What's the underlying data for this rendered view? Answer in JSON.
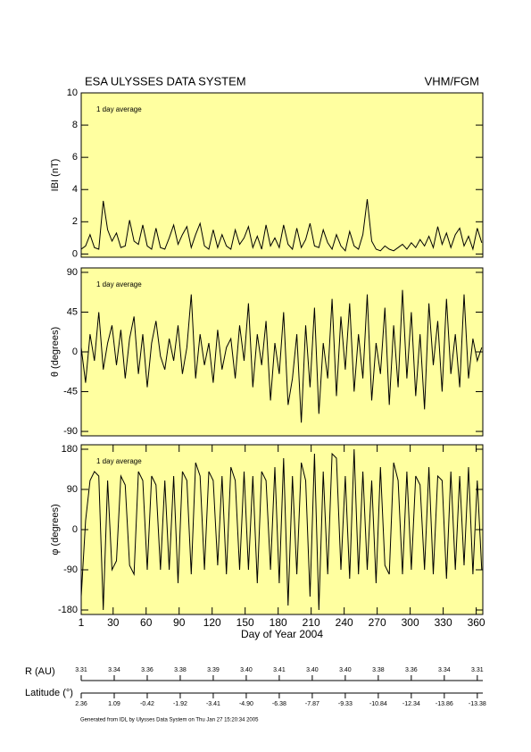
{
  "header": {
    "title": "ESA ULYSSES DATA SYSTEM",
    "instrument": "VHM/FGM"
  },
  "chart_data": [
    {
      "type": "line",
      "annotation": "1 day average",
      "ylabel": "IBI (nT)",
      "color": "#000000",
      "x": [
        1,
        5,
        9,
        13,
        17,
        21,
        25,
        29,
        33,
        37,
        41,
        45,
        49,
        53,
        57,
        61,
        65,
        69,
        73,
        77,
        81,
        85,
        89,
        93,
        97,
        101,
        105,
        109,
        113,
        117,
        121,
        125,
        129,
        133,
        137,
        141,
        145,
        149,
        153,
        157,
        161,
        165,
        169,
        173,
        177,
        181,
        185,
        189,
        193,
        197,
        201,
        205,
        209,
        213,
        217,
        221,
        225,
        229,
        233,
        237,
        241,
        245,
        249,
        253,
        257,
        261,
        265,
        269,
        273,
        277,
        281,
        285,
        289,
        293,
        297,
        301,
        305,
        309,
        313,
        317,
        321,
        325,
        329,
        333,
        337,
        341,
        345,
        349,
        353,
        357,
        361,
        365
      ],
      "values": [
        0.3,
        0.5,
        1.2,
        0.4,
        0.3,
        3.3,
        1.5,
        0.8,
        1.3,
        0.4,
        0.5,
        2.1,
        0.8,
        0.6,
        1.8,
        0.5,
        0.3,
        1.6,
        0.4,
        0.3,
        1.0,
        1.8,
        0.6,
        1.2,
        1.7,
        0.4,
        1.2,
        1.9,
        0.5,
        0.3,
        1.5,
        0.4,
        1.2,
        0.5,
        0.3,
        1.5,
        0.6,
        1.0,
        1.7,
        0.4,
        1.1,
        0.3,
        1.8,
        0.5,
        1.0,
        0.4,
        1.8,
        0.6,
        0.3,
        1.6,
        0.4,
        0.9,
        1.9,
        0.5,
        0.4,
        1.5,
        0.7,
        0.3,
        1.2,
        0.5,
        0.2,
        1.4,
        0.5,
        0.3,
        1.2,
        3.4,
        0.8,
        0.3,
        0.2,
        0.5,
        0.3,
        0.2,
        0.4,
        0.6,
        0.3,
        0.7,
        0.4,
        0.9,
        0.5,
        1.1,
        0.4,
        1.7,
        0.6,
        1.3,
        0.4,
        1.2,
        1.6,
        0.5,
        1.1,
        0.3,
        1.6,
        0.7
      ],
      "xlim": [
        1,
        366
      ],
      "ylim": [
        -0.2,
        10
      ],
      "yticks": [
        0,
        2,
        4,
        6,
        8,
        10
      ]
    },
    {
      "type": "line",
      "annotation": "1 day average",
      "ylabel": "θ (degrees)",
      "color": "#000000",
      "x": [
        1,
        5,
        9,
        13,
        17,
        21,
        25,
        29,
        33,
        37,
        41,
        45,
        49,
        53,
        57,
        61,
        65,
        69,
        73,
        77,
        81,
        85,
        89,
        93,
        97,
        101,
        105,
        109,
        113,
        117,
        121,
        125,
        129,
        133,
        137,
        141,
        145,
        149,
        153,
        157,
        161,
        165,
        169,
        173,
        177,
        181,
        185,
        189,
        193,
        197,
        201,
        205,
        209,
        213,
        217,
        221,
        225,
        229,
        233,
        237,
        241,
        245,
        249,
        253,
        257,
        261,
        265,
        269,
        273,
        277,
        281,
        285,
        289,
        293,
        297,
        301,
        305,
        309,
        313,
        317,
        321,
        325,
        329,
        333,
        337,
        341,
        345,
        349,
        353,
        357,
        361,
        365
      ],
      "values": [
        5,
        -35,
        20,
        -10,
        45,
        -20,
        10,
        30,
        -15,
        25,
        -30,
        15,
        40,
        -25,
        20,
        -40,
        10,
        35,
        -5,
        -20,
        15,
        -10,
        30,
        -25,
        5,
        65,
        -30,
        20,
        -15,
        10,
        -35,
        25,
        -20,
        5,
        15,
        -30,
        30,
        -10,
        55,
        -40,
        20,
        -15,
        35,
        -55,
        10,
        -25,
        45,
        -60,
        -30,
        20,
        -80,
        30,
        -40,
        50,
        -70,
        10,
        -30,
        60,
        -50,
        40,
        -20,
        55,
        -45,
        20,
        -30,
        65,
        -55,
        10,
        -25,
        50,
        -60,
        30,
        -40,
        70,
        -30,
        45,
        -50,
        20,
        -65,
        55,
        -15,
        35,
        -45,
        60,
        -25,
        20,
        -40,
        65,
        -30,
        15,
        -10,
        5
      ],
      "xlim": [
        1,
        366
      ],
      "ylim": [
        -95,
        95
      ],
      "yticks": [
        -90,
        -45,
        0,
        45,
        90
      ]
    },
    {
      "type": "line",
      "annotation": "1 day average",
      "ylabel": "φ (degrees)",
      "color": "#000000",
      "xlabel": "Day of Year 2004",
      "x": [
        1,
        5,
        9,
        13,
        17,
        21,
        25,
        29,
        33,
        37,
        41,
        45,
        49,
        53,
        57,
        61,
        65,
        69,
        73,
        77,
        81,
        85,
        89,
        93,
        97,
        101,
        105,
        109,
        113,
        117,
        121,
        125,
        129,
        133,
        137,
        141,
        145,
        149,
        153,
        157,
        161,
        165,
        169,
        173,
        177,
        181,
        185,
        189,
        193,
        197,
        201,
        205,
        209,
        213,
        217,
        221,
        225,
        229,
        233,
        237,
        241,
        245,
        249,
        253,
        257,
        261,
        265,
        269,
        273,
        277,
        281,
        285,
        289,
        293,
        297,
        301,
        305,
        309,
        313,
        317,
        321,
        325,
        329,
        333,
        337,
        341,
        345,
        349,
        353,
        357,
        361,
        365
      ],
      "values": [
        -150,
        20,
        110,
        130,
        120,
        -180,
        110,
        -90,
        -70,
        120,
        100,
        -80,
        -100,
        130,
        110,
        -90,
        120,
        100,
        -90,
        110,
        -90,
        120,
        -120,
        130,
        110,
        -100,
        150,
        120,
        -90,
        130,
        110,
        -80,
        120,
        -100,
        140,
        110,
        -90,
        130,
        -90,
        120,
        -120,
        130,
        110,
        -90,
        140,
        -120,
        160,
        -170,
        120,
        -100,
        150,
        110,
        -150,
        170,
        -180,
        130,
        -100,
        170,
        160,
        -90,
        120,
        -110,
        180,
        -100,
        130,
        -90,
        110,
        -120,
        140,
        -80,
        -100,
        150,
        110,
        -100,
        130,
        -90,
        120,
        100,
        -90,
        140,
        -100,
        120,
        110,
        -110,
        130,
        -90,
        120,
        -80,
        140,
        -100,
        110,
        -90
      ],
      "xlim": [
        1,
        366
      ],
      "ylim": [
        -190,
        190
      ],
      "yticks": [
        -180,
        -90,
        0,
        90,
        180
      ],
      "xticks": [
        1,
        30,
        60,
        90,
        120,
        150,
        180,
        210,
        240,
        270,
        300,
        330,
        360
      ]
    }
  ],
  "orbit": {
    "days": [
      1,
      31,
      61,
      91,
      121,
      151,
      181,
      211,
      241,
      271,
      301,
      331,
      361
    ],
    "r_label": "R (AU)",
    "r": {
      "values": [
        3.31,
        3.34,
        3.36,
        3.38,
        3.39,
        3.4,
        3.41,
        3.4,
        3.4,
        3.38,
        3.36,
        3.34,
        3.31
      ],
      "value_labels": [
        "3.31",
        "3.34",
        "3.36",
        "3.38",
        "3.39",
        "3.40",
        "3.41",
        "3.40",
        "3.40",
        "3.38",
        "3.36",
        "3.34",
        "3.31"
      ]
    },
    "latitude_label": "Latitude (°)",
    "latitude": {
      "values": [
        2.36,
        1.09,
        -0.42,
        -1.92,
        -3.41,
        -4.9,
        -6.38,
        -7.87,
        -9.33,
        -10.84,
        -12.34,
        -13.86,
        -13.38
      ],
      "value_labels": [
        "2.36",
        "1.09",
        "-0.42",
        "-1.92",
        "-3.41",
        "-4.90",
        "-6.38",
        "-7.87",
        "-9.33",
        "-10.84",
        "-12.34",
        "-13.86",
        "-13.38"
      ]
    }
  },
  "footer": "Generated from IDL by Ulysses Data System on Thu Jan 27 15:20:34 2005"
}
